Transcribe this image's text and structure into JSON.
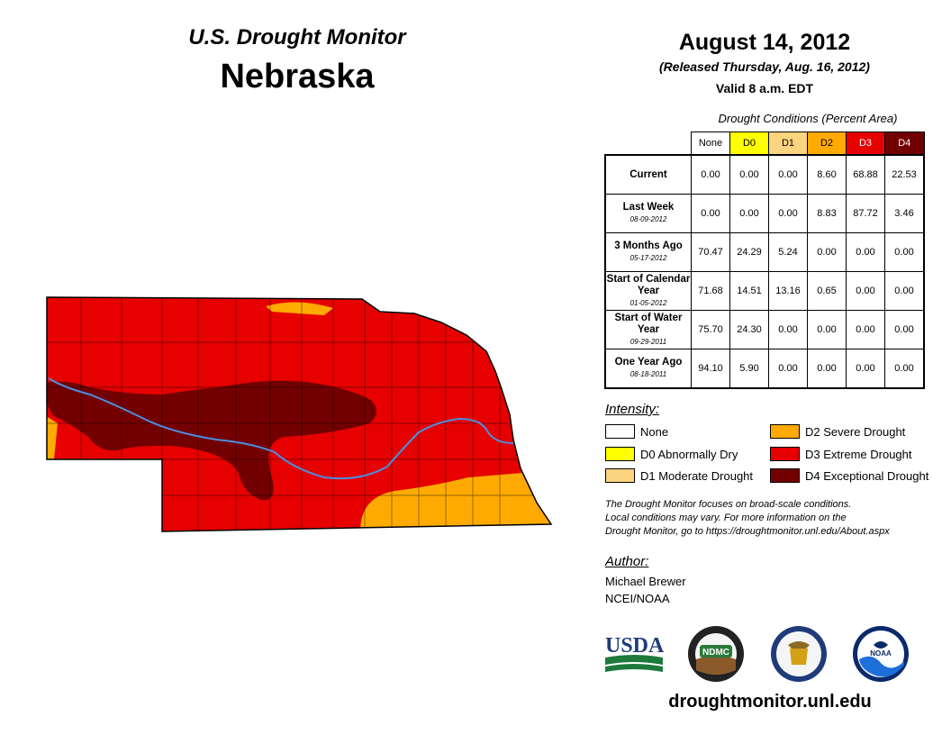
{
  "header": {
    "title": "U.S. Drought Monitor",
    "state": "Nebraska"
  },
  "report": {
    "date": "August 14, 2012",
    "released": "(Released Thursday, Aug. 16, 2012)",
    "valid": "Valid 8 a.m. EDT"
  },
  "table": {
    "caption": "Drought Conditions (Percent Area)",
    "columns": [
      "None",
      "D0",
      "D1",
      "D2",
      "D3",
      "D4"
    ],
    "rows": [
      {
        "label": "Current",
        "date": "",
        "values": [
          "0.00",
          "0.00",
          "0.00",
          "8.60",
          "68.88",
          "22.53"
        ]
      },
      {
        "label": "Last Week",
        "date": "08-09-2012",
        "values": [
          "0.00",
          "0.00",
          "0.00",
          "8.83",
          "87.72",
          "3.46"
        ]
      },
      {
        "label": "3 Months Ago",
        "date": "05-17-2012",
        "values": [
          "70.47",
          "24.29",
          "5.24",
          "0.00",
          "0.00",
          "0.00"
        ]
      },
      {
        "label": "Start of Calendar Year",
        "date": "01-05-2012",
        "values": [
          "71.68",
          "14.51",
          "13.16",
          "0.65",
          "0.00",
          "0.00"
        ]
      },
      {
        "label": "Start of Water Year",
        "date": "09-29-2011",
        "values": [
          "75.70",
          "24.30",
          "0.00",
          "0.00",
          "0.00",
          "0.00"
        ]
      },
      {
        "label": "One Year Ago",
        "date": "08-18-2011",
        "values": [
          "94.10",
          "5.90",
          "0.00",
          "0.00",
          "0.00",
          "0.00"
        ]
      }
    ]
  },
  "legend": {
    "heading": "Intensity:",
    "items": [
      {
        "label": "None",
        "color": "#ffffff"
      },
      {
        "label": "D0 Abnormally Dry",
        "color": "#ffff00"
      },
      {
        "label": "D1 Moderate Drought",
        "color": "#fcd37f"
      },
      {
        "label": "D2 Severe Drought",
        "color": "#ffaa00"
      },
      {
        "label": "D3 Extreme Drought",
        "color": "#e60000"
      },
      {
        "label": "D4 Exceptional Drought",
        "color": "#730000"
      }
    ]
  },
  "note": {
    "line1": "The Drought Monitor focuses on broad-scale conditions.",
    "line2": "Local conditions may vary. For more information on the",
    "line3": "Drought Monitor, go to https://droughtmonitor.unl.edu/About.aspx"
  },
  "author": {
    "heading": "Author:",
    "name": "Michael Brewer",
    "org": "NCEI/NOAA"
  },
  "logos": {
    "usda": "USDA",
    "ndmc": "NDMC",
    "noaa": "NOAA"
  },
  "site": "droughtmonitor.unl.edu",
  "colors": {
    "river": "#4a90e2",
    "county_line": "#000000"
  }
}
